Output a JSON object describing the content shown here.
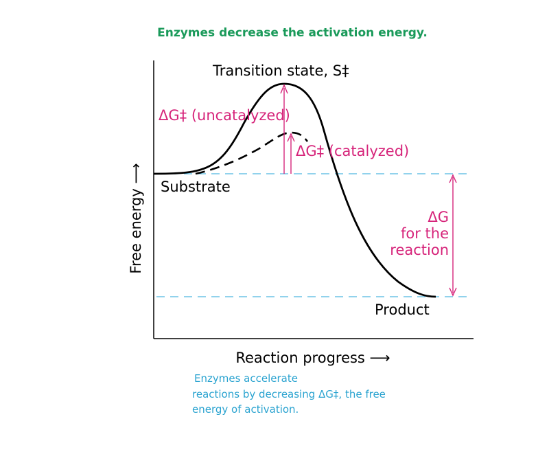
{
  "title": "Enzymes decrease the activation energy.",
  "labels": {
    "transition_state": "Transition state, S‡",
    "dg_uncatalyzed": "ΔG‡ (uncatalyzed)",
    "dg_catalyzed": "ΔG‡ (catalyzed)",
    "substrate": "Substrate",
    "product": "Product",
    "dg_reaction_1": "ΔG",
    "dg_reaction_2": "for the",
    "dg_reaction_3": "reaction"
  },
  "axes": {
    "x_label": "Reaction progress ⟶",
    "y_label": "Free energy ⟶"
  },
  "caption": {
    "line1": "Enzymes accelerate",
    "line2": "reactions by decreasing ΔG‡, the free",
    "line3": "energy of activation."
  },
  "colors": {
    "title": "#1a9a5a",
    "magenta": "#d6247a",
    "dashed_blue": "#4fb8e0",
    "caption": "#2aa3d0",
    "curve": "#000000"
  }
}
